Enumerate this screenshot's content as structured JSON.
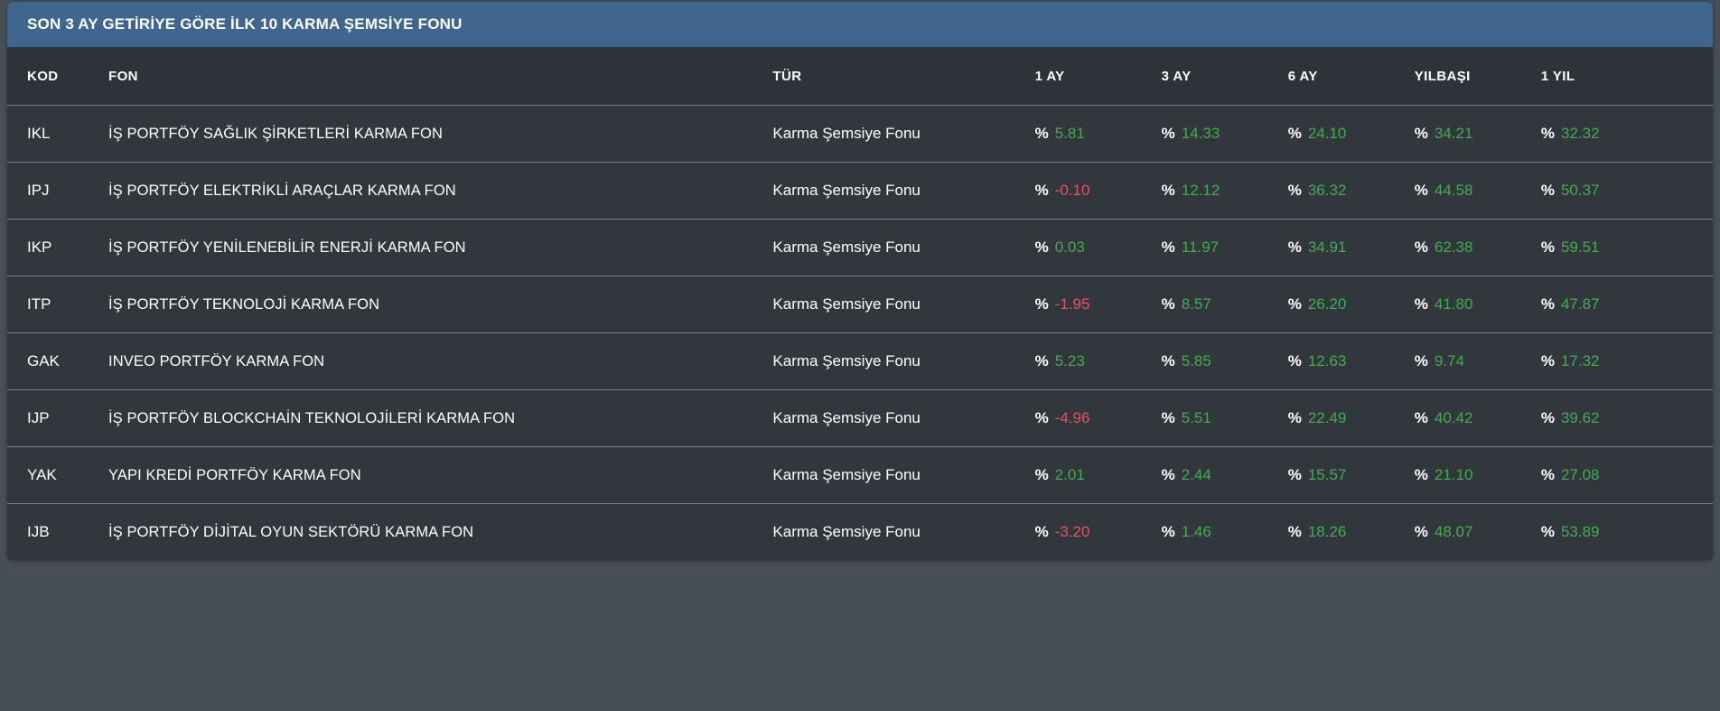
{
  "panel": {
    "title": "SON 3 AY GETİRİYE GÖRE İLK 10 KARMA ŞEMSİYE FONU"
  },
  "table": {
    "percent_symbol": "%",
    "columns": [
      "KOD",
      "FON",
      "TÜR",
      "1 AY",
      "3 AY",
      "6 AY",
      "YILBAŞI",
      "1 YIL"
    ],
    "rows": [
      {
        "kod": "IKL",
        "fon": "İŞ PORTFÖY SAĞLIK ŞİRKETLERİ KARMA FON",
        "tur": "Karma Şemsiye Fonu",
        "m1": "5.81",
        "m3": "14.33",
        "m6": "24.10",
        "ytd": "34.21",
        "y1": "32.32"
      },
      {
        "kod": "IPJ",
        "fon": "İŞ PORTFÖY ELEKTRİKLİ ARAÇLAR KARMA FON",
        "tur": "Karma Şemsiye Fonu",
        "m1": "-0.10",
        "m3": "12.12",
        "m6": "36.32",
        "ytd": "44.58",
        "y1": "50.37"
      },
      {
        "kod": "IKP",
        "fon": "İŞ PORTFÖY YENİLENEBİLİR ENERJİ KARMA FON",
        "tur": "Karma Şemsiye Fonu",
        "m1": "0.03",
        "m3": "11.97",
        "m6": "34.91",
        "ytd": "62.38",
        "y1": "59.51"
      },
      {
        "kod": "ITP",
        "fon": "İŞ PORTFÖY TEKNOLOJİ KARMA FON",
        "tur": "Karma Şemsiye Fonu",
        "m1": "-1.95",
        "m3": "8.57",
        "m6": "26.20",
        "ytd": "41.80",
        "y1": "47.87"
      },
      {
        "kod": "GAK",
        "fon": "INVEO PORTFÖY KARMA FON",
        "tur": "Karma Şemsiye Fonu",
        "m1": "5.23",
        "m3": "5.85",
        "m6": "12.63",
        "ytd": "9.74",
        "y1": "17.32"
      },
      {
        "kod": "IJP",
        "fon": "İŞ PORTFÖY BLOCKCHAİN TEKNOLOJİLERİ KARMA FON",
        "tur": "Karma Şemsiye Fonu",
        "m1": "-4.96",
        "m3": "5.51",
        "m6": "22.49",
        "ytd": "40.42",
        "y1": "39.62"
      },
      {
        "kod": "YAK",
        "fon": "YAPI KREDİ PORTFÖY KARMA FON",
        "tur": "Karma Şemsiye Fonu",
        "m1": "2.01",
        "m3": "2.44",
        "m6": "15.57",
        "ytd": "21.10",
        "y1": "27.08"
      },
      {
        "kod": "IJB",
        "fon": "İŞ PORTFÖY DİJİTAL OYUN SEKTÖRÜ KARMA FON",
        "tur": "Karma Şemsiye Fonu",
        "m1": "-3.20",
        "m3": "1.46",
        "m6": "18.26",
        "ytd": "48.07",
        "y1": "53.89"
      }
    ]
  },
  "colors": {
    "bg": "#474e56",
    "panel": "#32373e",
    "panel-header": "#2e333a",
    "titlebar": "#40668f",
    "separator": "#7c828a",
    "positive": "#42ad4d",
    "negative": "#e8515d",
    "text": "#ffffff"
  }
}
